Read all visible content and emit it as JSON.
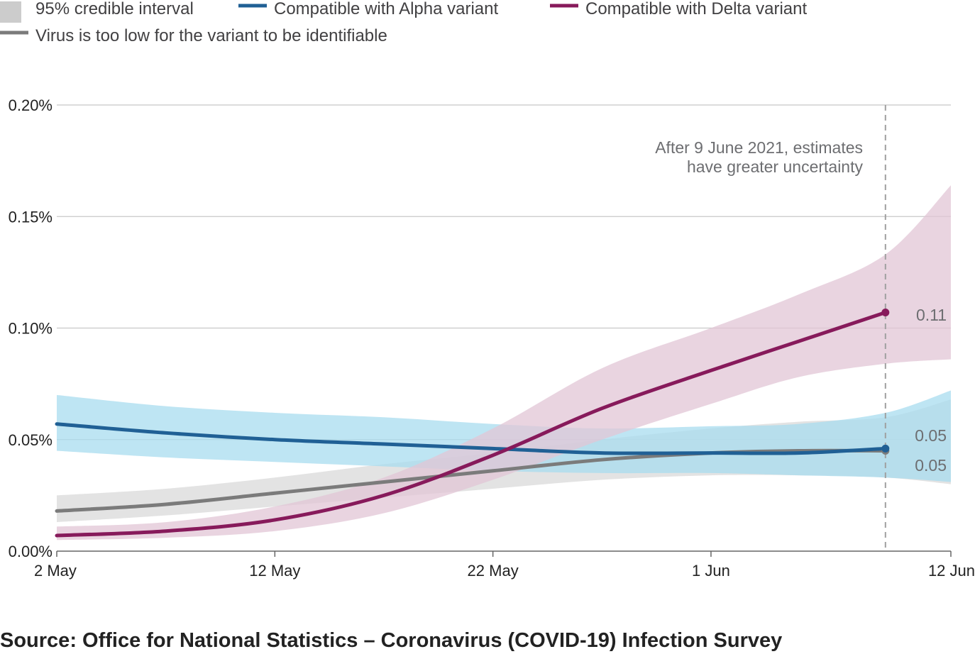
{
  "legend": {
    "ci_label": "95% credible interval",
    "alpha_label": "Compatible with Alpha variant",
    "delta_label": "Compatible with Delta variant",
    "low_label": "Virus is too low for the variant to be identifiable"
  },
  "annotation": {
    "line1": "After 9 June 2021, estimates",
    "line2": "have greater uncertainty"
  },
  "source": "Source: Office for National Statistics – Coronavirus (COVID-19) Infection Survey",
  "end_labels": {
    "delta": "0.11",
    "alpha": "0.05",
    "low": "0.05"
  },
  "colors": {
    "alpha": "#206095",
    "alpha_band": "#a8dcef",
    "delta": "#871a5b",
    "delta_band": "#e2c5d6",
    "low": "#7b7b7b",
    "low_band": "#d9d9d9",
    "grid": "#c8c8c8",
    "divider": "#a0a0a0"
  },
  "chart_data": {
    "type": "line",
    "x_ticks": [
      "2 May",
      "12 May",
      "22 May",
      "1 Jun",
      "12 Jun"
    ],
    "y_ticks": [
      "0.00%",
      "0.05%",
      "0.10%",
      "0.15%",
      "0.20%"
    ],
    "ylim": [
      0,
      0.2
    ],
    "xlim": [
      "2021-05-02",
      "2021-06-12"
    ],
    "reference_line_date": "2021-06-09",
    "x": [
      "2021-05-02",
      "2021-05-07",
      "2021-05-12",
      "2021-05-17",
      "2021-05-22",
      "2021-05-27",
      "2021-06-01",
      "2021-06-05",
      "2021-06-09",
      "2021-06-12"
    ],
    "band_x": [
      "2021-05-02",
      "2021-05-07",
      "2021-05-12",
      "2021-05-17",
      "2021-05-22",
      "2021-05-27",
      "2021-06-01",
      "2021-06-05",
      "2021-06-09",
      "2021-06-12"
    ],
    "series": [
      {
        "key": "low",
        "values": [
          0.018,
          0.021,
          0.026,
          0.031,
          0.036,
          0.041,
          0.044,
          0.045,
          0.045,
          null
        ],
        "band_upper": [
          0.025,
          0.028,
          0.033,
          0.039,
          0.044,
          0.05,
          0.055,
          0.058,
          0.06,
          0.068
        ],
        "band_lower": [
          0.013,
          0.016,
          0.02,
          0.024,
          0.028,
          0.032,
          0.034,
          0.034,
          0.033,
          0.03
        ]
      },
      {
        "key": "alpha",
        "values": [
          0.057,
          0.053,
          0.05,
          0.048,
          0.046,
          0.044,
          0.044,
          0.044,
          0.046,
          null
        ],
        "band_upper": [
          0.07,
          0.065,
          0.062,
          0.06,
          0.057,
          0.055,
          0.056,
          0.057,
          0.062,
          0.072
        ],
        "band_lower": [
          0.045,
          0.042,
          0.04,
          0.038,
          0.036,
          0.035,
          0.035,
          0.034,
          0.033,
          0.031
        ]
      },
      {
        "key": "delta",
        "values": [
          0.007,
          0.009,
          0.014,
          0.025,
          0.043,
          0.064,
          0.081,
          0.094,
          0.107,
          null
        ],
        "band_upper": [
          0.011,
          0.013,
          0.02,
          0.033,
          0.055,
          0.082,
          0.1,
          0.115,
          0.133,
          0.164
        ],
        "band_lower": [
          0.005,
          0.006,
          0.009,
          0.017,
          0.032,
          0.05,
          0.066,
          0.078,
          0.084,
          0.086
        ]
      }
    ]
  }
}
